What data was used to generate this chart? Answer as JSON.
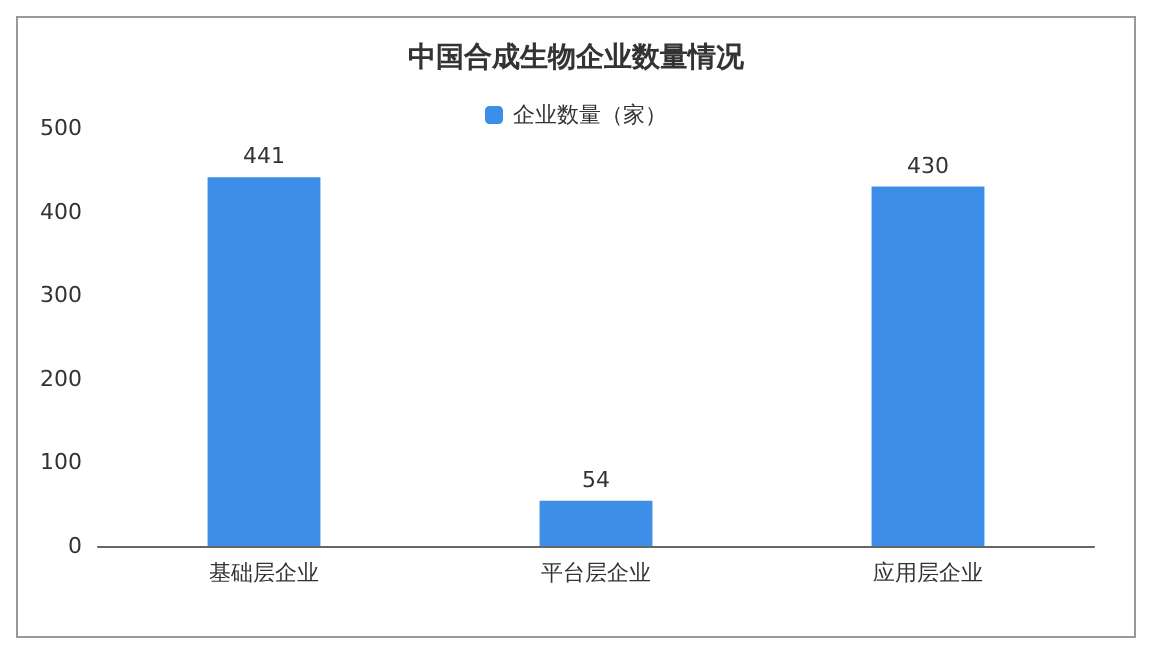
{
  "chart_data": {
    "type": "bar",
    "title": "中国合成生物企业数量情况",
    "categories": [
      "基础层企业",
      "平台层企业",
      "应用层企业"
    ],
    "series": [
      {
        "name": "企业数量（家）",
        "color": "#3d8ee6",
        "values": [
          441,
          54,
          430
        ]
      }
    ],
    "ylim": [
      0,
      500
    ],
    "yticks": [
      0,
      100,
      200,
      300,
      400,
      500
    ],
    "grid": false,
    "legend": "top",
    "data_labels": true
  }
}
